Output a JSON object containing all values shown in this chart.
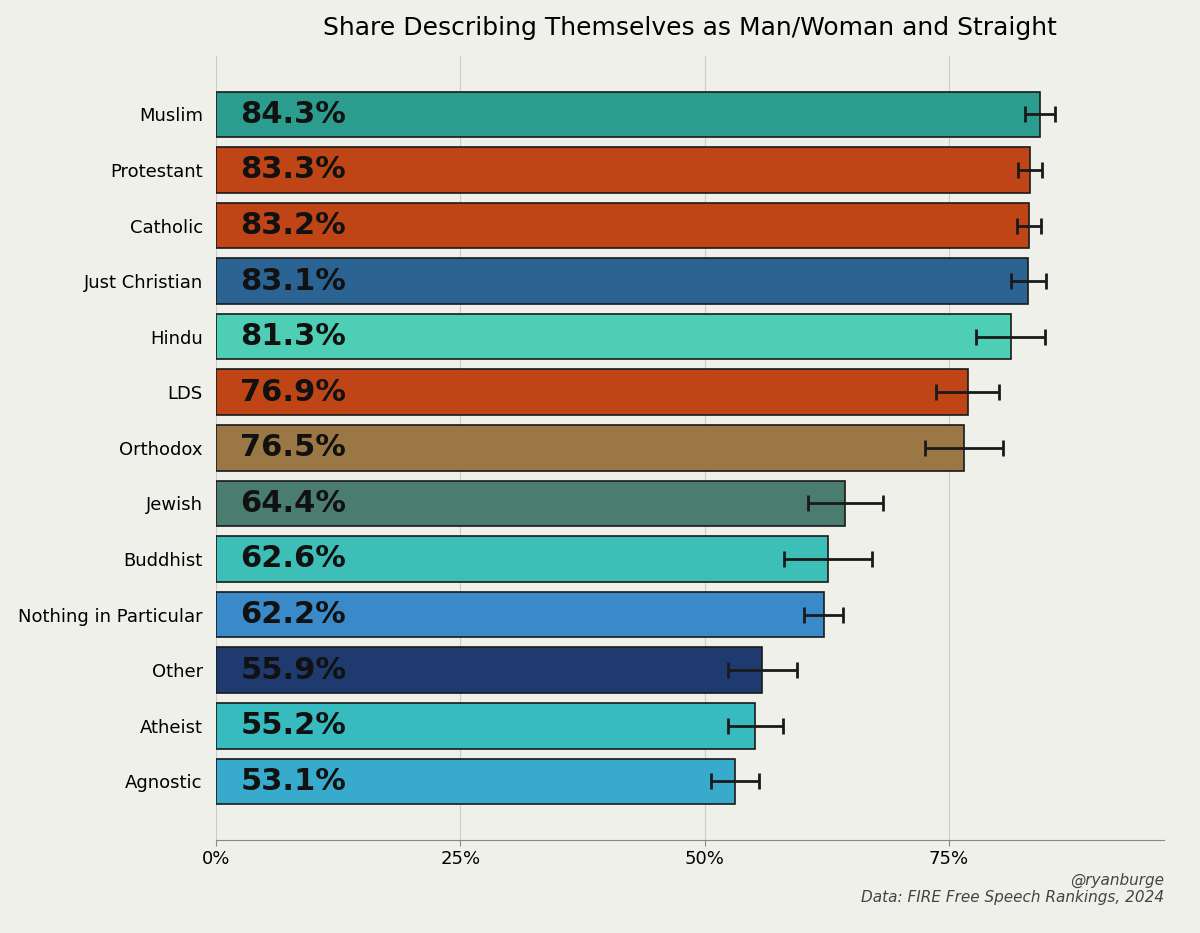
{
  "title": "Share Describing Themselves as Man/Woman and Straight",
  "categories": [
    "Muslim",
    "Protestant",
    "Catholic",
    "Just Christian",
    "Hindu",
    "LDS",
    "Orthodox",
    "Jewish",
    "Buddhist",
    "Nothing in Particular",
    "Other",
    "Atheist",
    "Agnostic"
  ],
  "values": [
    84.3,
    83.3,
    83.2,
    83.1,
    81.3,
    76.9,
    76.5,
    64.4,
    62.6,
    62.2,
    55.9,
    55.2,
    53.1
  ],
  "errors": [
    1.5,
    1.2,
    1.2,
    1.8,
    3.5,
    3.2,
    4.0,
    3.8,
    4.5,
    2.0,
    3.5,
    2.8,
    2.5
  ],
  "colors": [
    "#2a9d8f",
    "#bf4516",
    "#bf4516",
    "#2b6492",
    "#4ecfb5",
    "#bf4516",
    "#9b7745",
    "#4a7c6f",
    "#3dbfb8",
    "#3a89c9",
    "#1f3a6e",
    "#38bbbf",
    "#38aacc"
  ],
  "bar_labels": [
    "84.3%",
    "83.3%",
    "83.2%",
    "83.1%",
    "81.3%",
    "76.9%",
    "76.5%",
    "64.4%",
    "62.6%",
    "62.2%",
    "55.9%",
    "55.2%",
    "53.1%"
  ],
  "xlabel_ticks": [
    0,
    25,
    50,
    75
  ],
  "xlabel_tick_labels": [
    "0%",
    "25%",
    "50%",
    "75%"
  ],
  "xlim": [
    0,
    97
  ],
  "background_color": "#f0f0eb",
  "annotation": "@ryanburge\nData: FIRE Free Speech Rankings, 2024",
  "title_fontsize": 18,
  "label_fontsize": 22,
  "tick_fontsize": 13,
  "annotation_fontsize": 11,
  "bar_height": 0.82
}
